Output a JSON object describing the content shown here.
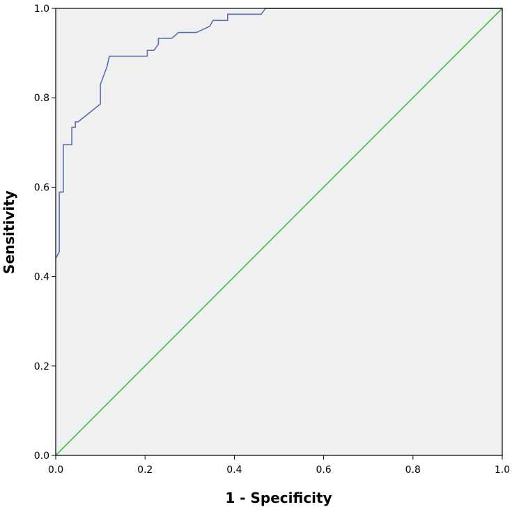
{
  "chart_data": {
    "type": "line",
    "title": "",
    "xlabel": "1 - Specificity",
    "ylabel": "Sensitivity",
    "xlim": [
      0.0,
      1.0
    ],
    "ylim": [
      0.0,
      1.0
    ],
    "x_ticks": [
      "0.0",
      "0.2",
      "0.4",
      "0.6",
      "0.8",
      "1.0"
    ],
    "y_ticks": [
      "0.0",
      "0.2",
      "0.4",
      "0.6",
      "0.8",
      "1.0"
    ],
    "grid": false,
    "legend": "none",
    "background_color": "#f0f0f0",
    "series": [
      {
        "color": "#5a6fb5",
        "points": [
          [
            0.0,
            0.441
          ],
          [
            0.008,
            0.455
          ],
          [
            0.008,
            0.589
          ],
          [
            0.017,
            0.589
          ],
          [
            0.017,
            0.695
          ],
          [
            0.036,
            0.695
          ],
          [
            0.036,
            0.734
          ],
          [
            0.044,
            0.734
          ],
          [
            0.044,
            0.746
          ],
          [
            0.05,
            0.746
          ],
          [
            0.1,
            0.786
          ],
          [
            0.1,
            0.83
          ],
          [
            0.115,
            0.87
          ],
          [
            0.12,
            0.893
          ],
          [
            0.205,
            0.893
          ],
          [
            0.205,
            0.906
          ],
          [
            0.22,
            0.906
          ],
          [
            0.23,
            0.92
          ],
          [
            0.23,
            0.933
          ],
          [
            0.26,
            0.933
          ],
          [
            0.275,
            0.946
          ],
          [
            0.315,
            0.946
          ],
          [
            0.345,
            0.96
          ],
          [
            0.352,
            0.973
          ],
          [
            0.385,
            0.973
          ],
          [
            0.385,
            0.987
          ],
          [
            0.46,
            0.987
          ],
          [
            0.47,
            1.0
          ],
          [
            1.0,
            1.0
          ]
        ]
      },
      {
        "color": "#3cbf4a",
        "points": [
          [
            0.0,
            0.0
          ],
          [
            1.0,
            1.0
          ]
        ]
      }
    ]
  }
}
